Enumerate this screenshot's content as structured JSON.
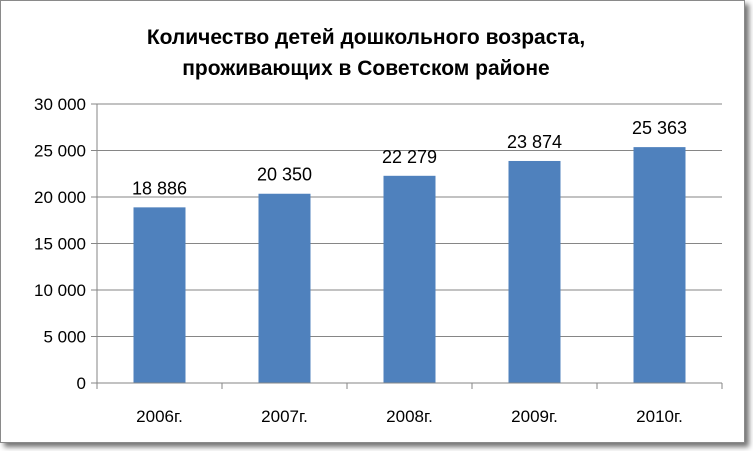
{
  "chart_data": {
    "type": "bar",
    "title_lines": [
      "Количество детей дошкольного возраста,",
      "проживающих в Советском районе"
    ],
    "categories": [
      "2006г.",
      "2007г.",
      "2008г.",
      "2009г.",
      "2010г."
    ],
    "values": [
      18886,
      20350,
      22279,
      23874,
      25363
    ],
    "value_labels": [
      "18 886",
      "20 350",
      "22 279",
      "23 874",
      "25 363"
    ],
    "ylim": [
      0,
      30000
    ],
    "ytick_values": [
      0,
      5000,
      10000,
      15000,
      20000,
      25000,
      30000
    ],
    "ytick_labels": [
      "0",
      "5 000",
      "10 000",
      "15 000",
      "20 000",
      "25 000",
      "30 000"
    ],
    "xlabel": "",
    "ylabel": "",
    "grid": true,
    "legend": "none",
    "colors": {
      "bar": "#4f81bd",
      "grid": "#868686",
      "axis": "#868686"
    }
  }
}
